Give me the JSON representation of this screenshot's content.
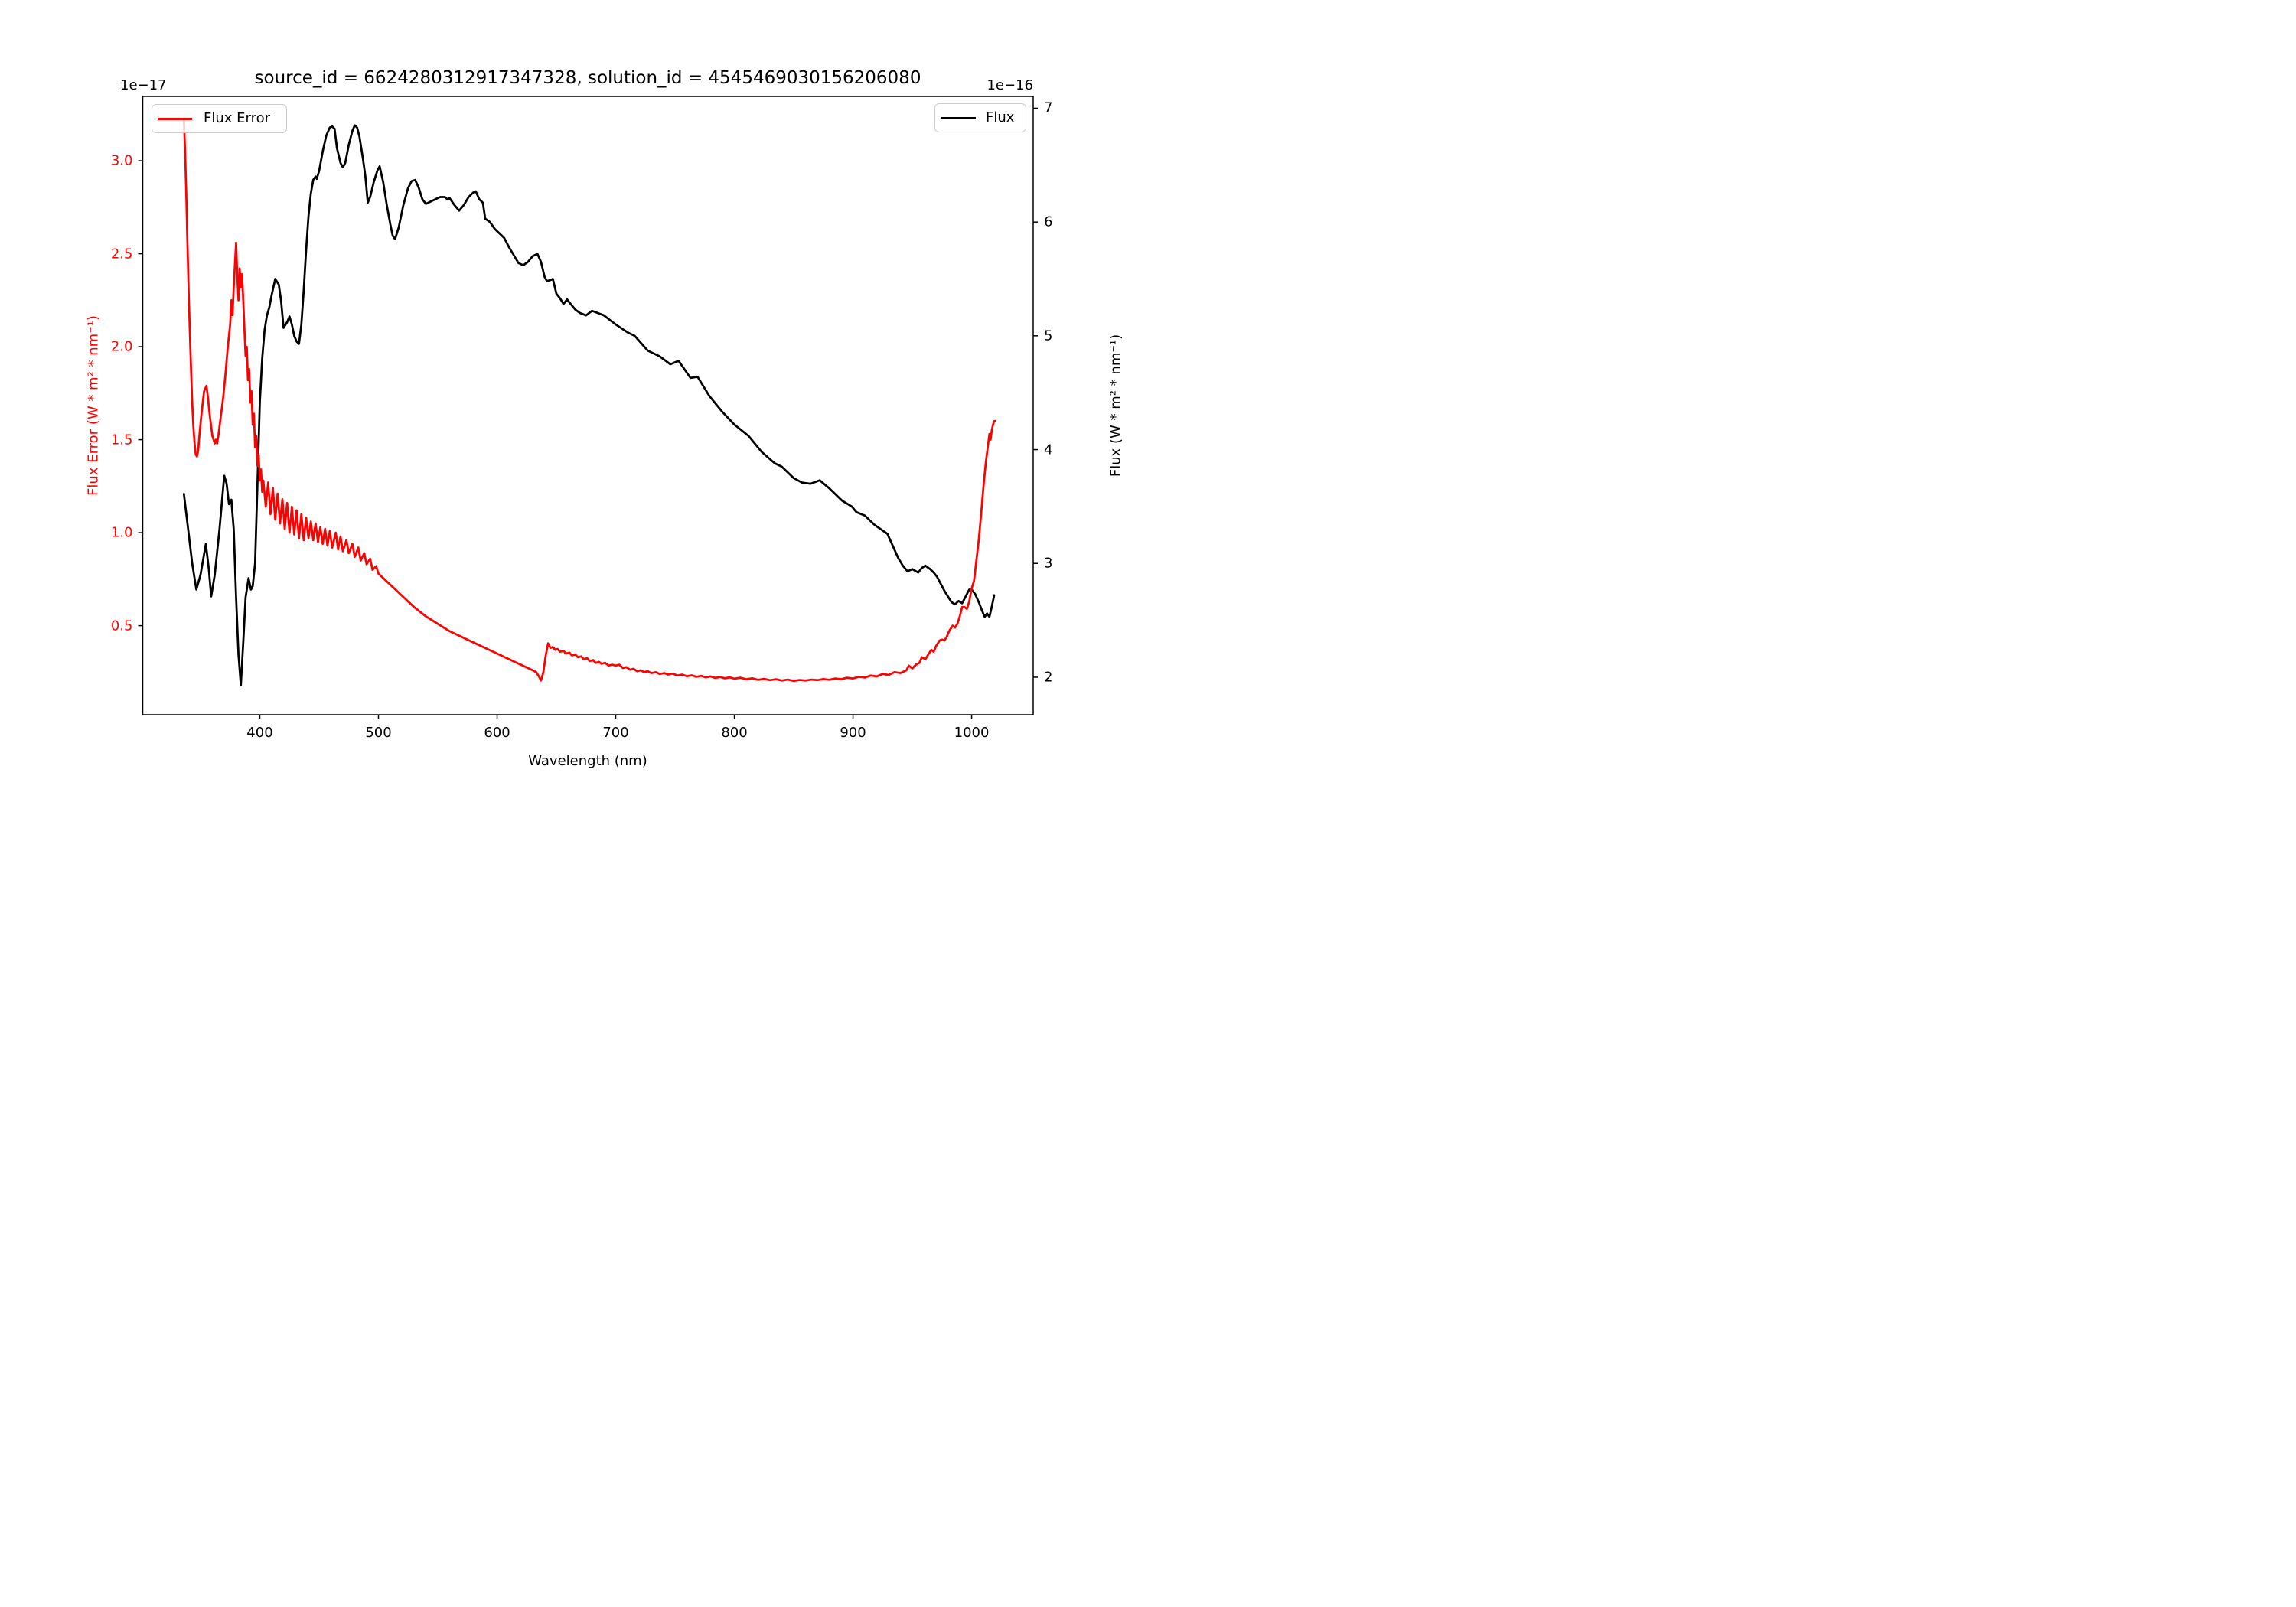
{
  "chart_data": {
    "type": "line",
    "title": "source_id = 6624280312917347328, solution_id = 4545469030156206080",
    "xlabel": "Wavelength (nm)",
    "x_ticks": [
      400,
      500,
      600,
      700,
      800,
      900,
      1000
    ],
    "x_tick_labels": [
      "400",
      "500",
      "600",
      "700",
      "800",
      "900",
      "1000"
    ],
    "xlim": [
      301.3,
      1051.9
    ],
    "grid": false,
    "background": "#ffffff",
    "left_axis": {
      "ylabel": "Flux Error (W * m² * nm⁻¹)",
      "offset_text": "1e−17",
      "ticks": [
        3.0,
        2.5,
        2.0,
        1.5,
        1.0,
        0.5
      ],
      "tick_labels": [
        "3.0",
        "2.5",
        "2.0",
        "1.5",
        "1.0",
        "0.5"
      ],
      "ylim": [
        0.021,
        3.346
      ],
      "color": "#ff0000",
      "unit_scale": "1e-17"
    },
    "right_axis": {
      "ylabel": "Flux (W * m² * nm⁻¹)",
      "offset_text": "1e−16",
      "ticks": [
        7,
        6,
        5,
        4,
        3,
        2
      ],
      "tick_labels": [
        "7",
        "6",
        "5",
        "4",
        "3",
        "2"
      ],
      "ylim": [
        1.67,
        7.104
      ],
      "color": "#000000",
      "unit_scale": "1e-16"
    },
    "legend_left": {
      "label": "Flux Error",
      "loc": "upper left"
    },
    "legend_right": {
      "label": "Flux",
      "loc": "upper right"
    },
    "series": [
      {
        "name": "Flux",
        "axis": "right",
        "color": "#000000",
        "line_width": 2.75,
        "x": [
          336,
          339,
          343,
          346.5,
          350,
          354.5,
          357,
          359,
          362,
          366,
          370,
          372,
          374,
          376,
          378,
          380,
          382,
          384,
          386,
          388,
          390.5,
          392.5,
          394,
          396,
          398,
          400,
          402,
          404,
          406,
          408,
          410,
          413,
          416,
          418,
          420,
          423,
          425,
          427,
          429,
          431,
          433,
          435,
          437,
          439,
          441,
          443,
          445,
          447,
          448,
          450,
          453,
          456,
          459,
          461,
          463,
          465,
          468,
          470,
          472,
          475,
          478,
          480,
          482,
          484,
          487,
          489,
          491,
          493,
          496,
          499,
          501,
          504,
          507,
          510,
          512,
          514,
          517,
          521,
          525,
          528,
          531,
          534,
          537,
          540,
          544,
          548,
          552,
          556,
          558,
          560,
          564,
          568,
          572,
          576,
          580,
          582,
          585,
          588,
          590,
          594,
          598,
          602,
          606,
          610,
          614,
          618,
          622,
          626,
          630,
          634,
          637,
          640,
          642,
          645,
          647,
          650,
          653,
          656,
          659,
          662,
          666,
          670,
          675,
          680,
          690,
          700,
          710,
          716,
          727,
          737,
          746,
          753,
          763,
          769,
          779,
          790,
          800,
          812,
          823,
          834,
          840,
          850,
          857,
          864,
          872,
          880,
          891,
          899,
          903,
          910,
          918,
          929,
          938,
          942,
          946,
          950,
          955,
          958,
          961,
          965,
          968,
          971,
          974,
          977,
          980,
          983,
          986,
          989,
          992,
          995,
          998,
          1000,
          1003,
          1006,
          1009,
          1011,
          1013,
          1015,
          1017,
          1019
        ],
        "y": [
          3.61,
          3.35,
          3.0,
          2.77,
          2.9,
          3.17,
          2.95,
          2.71,
          2.9,
          3.3,
          3.77,
          3.7,
          3.52,
          3.56,
          3.3,
          2.7,
          2.2,
          1.93,
          2.3,
          2.7,
          2.87,
          2.77,
          2.8,
          3.0,
          3.7,
          4.42,
          4.8,
          5.05,
          5.18,
          5.25,
          5.36,
          5.5,
          5.45,
          5.3,
          5.07,
          5.12,
          5.17,
          5.1,
          5.0,
          4.95,
          4.93,
          5.1,
          5.4,
          5.75,
          6.05,
          6.25,
          6.37,
          6.4,
          6.38,
          6.45,
          6.62,
          6.76,
          6.83,
          6.84,
          6.82,
          6.65,
          6.52,
          6.48,
          6.52,
          6.68,
          6.8,
          6.85,
          6.83,
          6.75,
          6.55,
          6.4,
          6.17,
          6.22,
          6.35,
          6.45,
          6.49,
          6.35,
          6.15,
          5.98,
          5.88,
          5.85,
          5.95,
          6.15,
          6.3,
          6.36,
          6.37,
          6.3,
          6.2,
          6.16,
          6.18,
          6.2,
          6.22,
          6.22,
          6.2,
          6.21,
          6.15,
          6.1,
          6.15,
          6.22,
          6.26,
          6.27,
          6.2,
          6.17,
          6.03,
          6.0,
          5.94,
          5.9,
          5.86,
          5.78,
          5.71,
          5.64,
          5.62,
          5.65,
          5.7,
          5.72,
          5.65,
          5.52,
          5.48,
          5.49,
          5.5,
          5.37,
          5.33,
          5.28,
          5.32,
          5.28,
          5.23,
          5.2,
          5.18,
          5.22,
          5.18,
          5.1,
          5.03,
          5.0,
          4.87,
          4.82,
          4.75,
          4.78,
          4.63,
          4.64,
          4.47,
          4.33,
          4.22,
          4.12,
          3.98,
          3.88,
          3.85,
          3.75,
          3.71,
          3.7,
          3.73,
          3.66,
          3.55,
          3.5,
          3.45,
          3.42,
          3.34,
          3.26,
          3.05,
          2.98,
          2.93,
          2.95,
          2.92,
          2.96,
          2.98,
          2.95,
          2.92,
          2.88,
          2.82,
          2.76,
          2.71,
          2.66,
          2.64,
          2.67,
          2.65,
          2.71,
          2.77,
          2.77,
          2.73,
          2.66,
          2.58,
          2.53,
          2.56,
          2.53,
          2.62,
          2.72
        ]
      },
      {
        "name": "Flux Error",
        "axis": "left",
        "color": "#ff0000",
        "line_width": 2.75,
        "x": [
          336,
          337,
          338,
          339,
          340,
          341,
          342,
          343,
          344,
          345,
          346,
          347,
          348,
          349,
          351,
          353,
          355,
          356,
          358,
          360,
          362,
          363,
          364,
          365,
          367,
          369,
          371,
          373,
          375,
          376,
          377,
          378,
          380,
          381,
          382,
          383,
          384,
          385,
          386,
          387,
          388,
          389,
          390,
          391,
          392,
          393,
          394,
          395,
          396,
          397,
          398,
          399,
          400,
          401,
          402,
          403,
          405,
          407,
          409,
          411,
          413,
          415,
          417,
          419,
          421,
          423,
          425,
          427,
          429,
          431,
          433,
          435,
          437,
          439,
          441,
          443,
          445,
          447,
          449,
          451,
          453,
          455,
          457,
          459,
          461,
          464,
          466,
          468,
          470,
          473,
          475,
          478,
          480,
          483,
          485,
          488,
          490,
          493,
          495,
          498,
          500,
          505,
          510,
          515,
          520,
          525,
          530,
          535,
          540,
          545,
          550,
          555,
          560,
          565,
          570,
          575,
          580,
          585,
          590,
          595,
          600,
          605,
          610,
          615,
          620,
          625,
          630,
          633,
          635,
          637,
          639,
          641,
          643,
          645,
          647,
          649,
          651,
          653,
          656,
          658,
          661,
          663,
          666,
          668,
          671,
          673,
          676,
          678,
          681,
          683,
          686,
          688,
          691,
          694,
          697,
          700,
          703,
          706,
          709,
          712,
          715,
          718,
          721,
          724,
          727,
          730,
          734,
          737,
          741,
          744,
          748,
          752,
          756,
          760,
          764,
          768,
          772,
          776,
          780,
          784,
          788,
          792,
          796,
          800,
          805,
          810,
          815,
          820,
          825,
          830,
          835,
          840,
          845,
          850,
          855,
          860,
          865,
          870,
          875,
          880,
          885,
          890,
          895,
          900,
          905,
          910,
          915,
          920,
          925,
          930,
          935,
          940,
          945,
          947,
          950,
          953,
          956,
          958,
          961,
          964,
          966,
          968,
          970,
          973,
          975,
          977,
          979,
          981,
          984,
          986,
          988,
          990,
          992,
          994,
          996,
          998,
          1000,
          1002,
          1004,
          1006,
          1008,
          1010,
          1012,
          1014,
          1015,
          1016,
          1017,
          1018,
          1019,
          1020
        ],
        "y": [
          3.22,
          3.05,
          2.82,
          2.55,
          2.3,
          2.08,
          1.88,
          1.7,
          1.57,
          1.48,
          1.42,
          1.41,
          1.44,
          1.52,
          1.65,
          1.76,
          1.79,
          1.74,
          1.62,
          1.52,
          1.48,
          1.5,
          1.48,
          1.52,
          1.62,
          1.72,
          1.85,
          2.0,
          2.12,
          2.25,
          2.17,
          2.32,
          2.56,
          2.38,
          2.25,
          2.42,
          2.32,
          2.39,
          2.25,
          2.1,
          1.95,
          2.0,
          1.82,
          1.88,
          1.7,
          1.76,
          1.58,
          1.64,
          1.46,
          1.52,
          1.36,
          1.42,
          1.28,
          1.34,
          1.22,
          1.28,
          1.14,
          1.27,
          1.1,
          1.24,
          1.07,
          1.21,
          1.05,
          1.18,
          1.02,
          1.16,
          1.0,
          1.14,
          0.99,
          1.12,
          0.97,
          1.1,
          0.96,
          1.08,
          0.97,
          1.06,
          0.96,
          1.05,
          0.95,
          1.03,
          0.94,
          1.02,
          0.93,
          1.01,
          0.92,
          1.0,
          0.91,
          0.98,
          0.9,
          0.96,
          0.89,
          0.94,
          0.87,
          0.92,
          0.85,
          0.89,
          0.83,
          0.86,
          0.8,
          0.82,
          0.78,
          0.75,
          0.72,
          0.69,
          0.66,
          0.63,
          0.6,
          0.575,
          0.55,
          0.53,
          0.51,
          0.49,
          0.47,
          0.455,
          0.44,
          0.425,
          0.41,
          0.395,
          0.38,
          0.365,
          0.35,
          0.335,
          0.32,
          0.305,
          0.29,
          0.275,
          0.26,
          0.25,
          0.23,
          0.205,
          0.25,
          0.34,
          0.405,
          0.38,
          0.385,
          0.37,
          0.375,
          0.36,
          0.365,
          0.35,
          0.355,
          0.34,
          0.345,
          0.33,
          0.335,
          0.32,
          0.325,
          0.31,
          0.315,
          0.3,
          0.305,
          0.295,
          0.3,
          0.285,
          0.29,
          0.285,
          0.29,
          0.272,
          0.277,
          0.263,
          0.268,
          0.255,
          0.26,
          0.25,
          0.255,
          0.245,
          0.25,
          0.24,
          0.245,
          0.237,
          0.242,
          0.232,
          0.237,
          0.228,
          0.233,
          0.225,
          0.23,
          0.222,
          0.227,
          0.219,
          0.224,
          0.217,
          0.222,
          0.215,
          0.22,
          0.212,
          0.217,
          0.209,
          0.214,
          0.207,
          0.212,
          0.205,
          0.21,
          0.203,
          0.208,
          0.205,
          0.21,
          0.207,
          0.213,
          0.209,
          0.216,
          0.212,
          0.22,
          0.216,
          0.225,
          0.221,
          0.232,
          0.227,
          0.24,
          0.235,
          0.25,
          0.245,
          0.26,
          0.285,
          0.27,
          0.29,
          0.3,
          0.33,
          0.32,
          0.35,
          0.37,
          0.36,
          0.39,
          0.42,
          0.425,
          0.42,
          0.44,
          0.47,
          0.5,
          0.49,
          0.51,
          0.55,
          0.6,
          0.6,
          0.59,
          0.63,
          0.7,
          0.74,
          0.85,
          0.96,
          1.1,
          1.25,
          1.38,
          1.48,
          1.53,
          1.5,
          1.55,
          1.58,
          1.6,
          1.6
        ]
      }
    ]
  }
}
